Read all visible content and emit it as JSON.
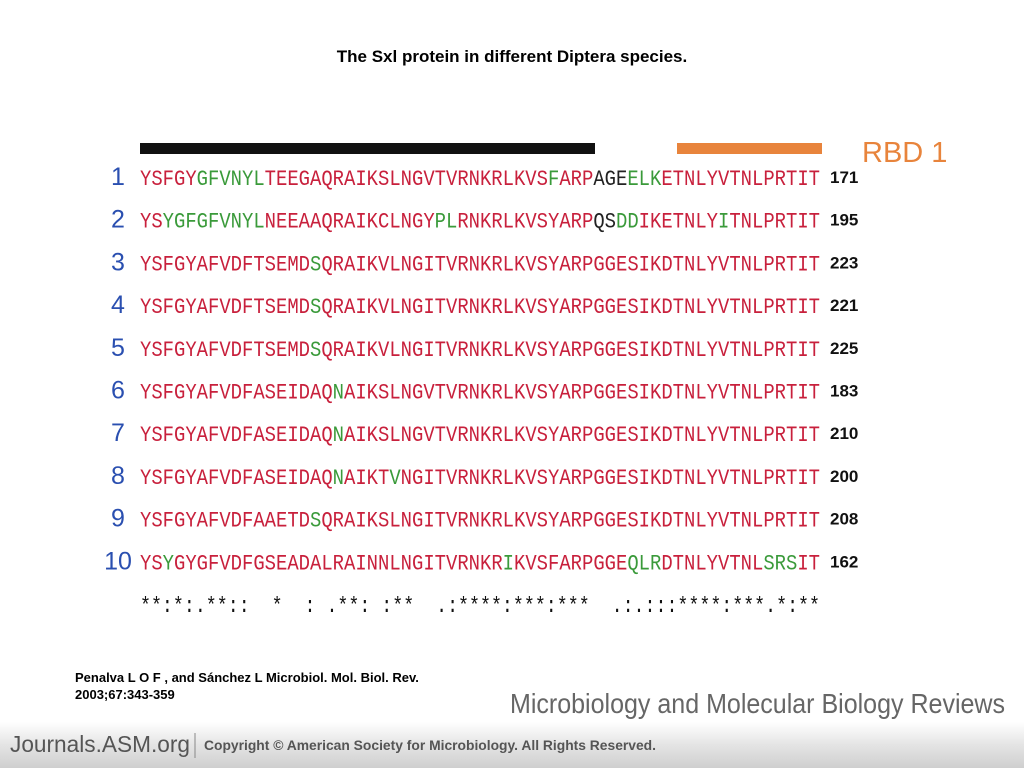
{
  "title": "The Sxl protein in different Diptera species.",
  "domain_label": "RBD 1",
  "rows": [
    {
      "label": "1",
      "segments": [
        {
          "text": "YSFGY",
          "color": "#c8203c"
        },
        {
          "text": "GFVNYL",
          "color": "#3a9a3a"
        },
        {
          "text": "TEEGAQRAIKSLNGVTVRNKRLKVS",
          "color": "#c8203c"
        },
        {
          "text": "F",
          "color": "#3a9a3a"
        },
        {
          "text": "ARP",
          "color": "#c8203c"
        },
        {
          "text": "AGE",
          "color": "#222222"
        },
        {
          "text": "ELK",
          "color": "#3a9a3a"
        },
        {
          "text": "ETNLYVTNLPRTIT",
          "color": "#c8203c"
        }
      ],
      "number": 171
    },
    {
      "label": "2",
      "segments": [
        {
          "text": "YS",
          "color": "#c8203c"
        },
        {
          "text": "Y",
          "color": "#3a9a3a"
        },
        {
          "text": "GFGFVNYL",
          "color": "#3a9a3a"
        },
        {
          "text": "NEEAAQRAIKCLNGY",
          "color": "#c8203c"
        },
        {
          "text": "PL",
          "color": "#3a9a3a"
        },
        {
          "text": "RNKRLKVSYARP",
          "color": "#c8203c"
        },
        {
          "text": "QS",
          "color": "#222222"
        },
        {
          "text": "DD",
          "color": "#3a9a3a"
        },
        {
          "text": "IKETNLY",
          "color": "#c8203c"
        },
        {
          "text": "I",
          "color": "#3a9a3a"
        },
        {
          "text": "TNLPRTIT",
          "color": "#c8203c"
        }
      ],
      "number": 195
    },
    {
      "label": "3",
      "segments": [
        {
          "text": "YSFGYAFVDFTSEMD",
          "color": "#c8203c"
        },
        {
          "text": "S",
          "color": "#3a9a3a"
        },
        {
          "text": "QRAIKVLNGITVRNKRLKVSYARPGGESIKDTNLYVTNLPRTIT",
          "color": "#c8203c"
        }
      ],
      "number": 223
    },
    {
      "label": "4",
      "segments": [
        {
          "text": "YSFGYAFVDFTSEMD",
          "color": "#c8203c"
        },
        {
          "text": "S",
          "color": "#3a9a3a"
        },
        {
          "text": "QRAIKVLNGITVRNKRLKVSYARPGGESIKDTNLYVTNLPRTIT",
          "color": "#c8203c"
        }
      ],
      "number": 221
    },
    {
      "label": "5",
      "segments": [
        {
          "text": "YSFGYAFVDFTSEMD",
          "color": "#c8203c"
        },
        {
          "text": "S",
          "color": "#3a9a3a"
        },
        {
          "text": "QRAIKVLNGITVRNKRLKVSYARPGGESIKDTNLYVTNLPRTIT",
          "color": "#c8203c"
        }
      ],
      "number": 225
    },
    {
      "label": "6",
      "segments": [
        {
          "text": "YSFGYAFVDFASEIDAQ",
          "color": "#c8203c"
        },
        {
          "text": "N",
          "color": "#3a9a3a"
        },
        {
          "text": "AIKSLNGVTVRNKRLKVSYARPGGESIKDTNLYVTNLPRTIT",
          "color": "#c8203c"
        }
      ],
      "number": 183
    },
    {
      "label": "7",
      "segments": [
        {
          "text": "YSFGYAFVDFASEIDAQ",
          "color": "#c8203c"
        },
        {
          "text": "N",
          "color": "#3a9a3a"
        },
        {
          "text": "AIKSLNGVTVRNKRLKVSYARPGGESIKDTNLYVTNLPRTIT",
          "color": "#c8203c"
        }
      ],
      "number": 210
    },
    {
      "label": "8",
      "segments": [
        {
          "text": "YSFGYAFVDFASEIDAQ",
          "color": "#c8203c"
        },
        {
          "text": "N",
          "color": "#3a9a3a"
        },
        {
          "text": "AIKT",
          "color": "#c8203c"
        },
        {
          "text": "V",
          "color": "#3a9a3a"
        },
        {
          "text": "NGITVRNKRLKVSYARPGGESIKDTNLYVTNLPRTIT",
          "color": "#c8203c"
        }
      ],
      "number": 200
    },
    {
      "label": "9",
      "segments": [
        {
          "text": "YSFGYAFVDFAAETD",
          "color": "#c8203c"
        },
        {
          "text": "S",
          "color": "#3a9a3a"
        },
        {
          "text": "QRAIKSLNGITVRNKRLKVSYARPGGESIKDTNLYVTNLPRTIT",
          "color": "#c8203c"
        }
      ],
      "number": 208
    },
    {
      "label": "10",
      "segments": [
        {
          "text": "YS",
          "color": "#c8203c"
        },
        {
          "text": "Y",
          "color": "#3a9a3a"
        },
        {
          "text": "GYGFVDFGSEADALRAINNLNGITVRNKR",
          "color": "#c8203c"
        },
        {
          "text": "I",
          "color": "#3a9a3a"
        },
        {
          "text": "KVSFARPGGE",
          "color": "#c8203c"
        },
        {
          "text": "QLR",
          "color": "#3a9a3a"
        },
        {
          "text": "DTNLYVTNL",
          "color": "#c8203c"
        },
        {
          "text": "SRS",
          "color": "#3a9a3a"
        },
        {
          "text": "IT",
          "color": "#c8203c"
        }
      ],
      "number": 162
    }
  ],
  "conservation": "**:*:.**::  *  : .**: :**  .:****:***:***  .:.:::****:***.*:**",
  "citation": [
    "Penalva L O F , and Sánchez L Microbiol. Mol. Biol. Rev.",
    "2003;67:343-359"
  ],
  "journal": "Microbiology and Molecular Biology Reviews",
  "footer": {
    "site": "Journals.ASM.org",
    "copyright": "Copyright © American Society for Microbiology. All Rights Reserved."
  }
}
